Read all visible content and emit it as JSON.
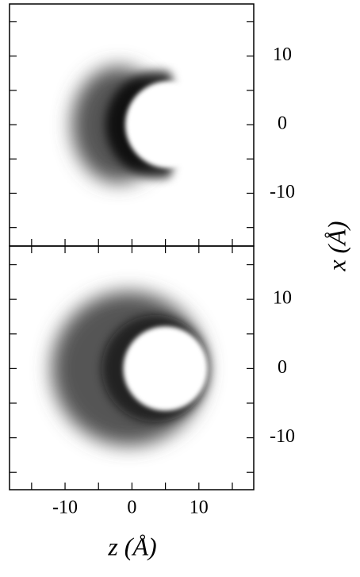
{
  "chart_data": [
    {
      "type": "density",
      "xlim": [
        -18.3,
        18.2
      ],
      "ylim": [
        -17.7,
        17.6
      ],
      "xticks": [
        -10,
        0,
        10
      ],
      "minor_xticks": [
        -15,
        -5,
        5,
        15
      ],
      "yticks": [
        -10,
        0,
        10
      ],
      "minor_yticks": [
        -15,
        -5,
        5,
        15
      ],
      "ylabel": "x (Å)"
    },
    {
      "type": "density",
      "xlim": [
        -18.3,
        18.2
      ],
      "ylim": [
        -17.5,
        17.7
      ],
      "xticks": [
        -10,
        0,
        10
      ],
      "minor_xticks": [
        -15,
        -5,
        5,
        15
      ],
      "yticks": [
        -10,
        0,
        10
      ],
      "minor_yticks": [
        -15,
        -5,
        5,
        15
      ],
      "xlabel": "z (Å)"
    }
  ]
}
